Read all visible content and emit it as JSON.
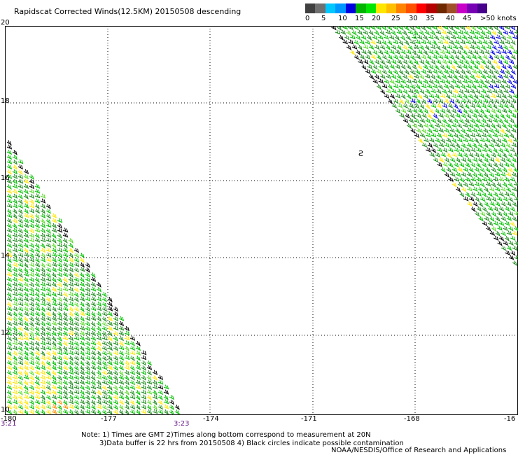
{
  "title": "Rapidscat Corrected Winds(12.5KM) 20150508 descending",
  "legend": {
    "colors": [
      "#404040",
      "#707070",
      "#00c8ff",
      "#0096ff",
      "#0000e0",
      "#00b400",
      "#00e600",
      "#ffe600",
      "#ffbe00",
      "#ff8200",
      "#ff5000",
      "#ff0000",
      "#b40000",
      "#6e2800",
      "#a05028",
      "#c800c8",
      "#7800b4",
      "#46008c"
    ],
    "labels": [
      "0",
      "5",
      "10",
      "15",
      "20",
      "25",
      "30",
      "35",
      "40",
      "45",
      ">50 knots"
    ]
  },
  "map": {
    "lat_labels": [
      "20",
      "18",
      "16",
      "14",
      "12",
      "10"
    ],
    "lon_labels": [
      "-180",
      "-177",
      "-174",
      "-171",
      "-168",
      "-16"
    ],
    "time_labels": [
      "3:21",
      "3:23"
    ],
    "annotation": "Ƨ"
  },
  "notes": {
    "line1": "Note: 1) Times are GMT 2)Times along bottom correspond to measurement at 20N",
    "line2": "3)Data buffer is 22 hrs from 20150508 4) Black circles indicate possible contamination"
  },
  "credit": "NOAA/NESDIS/Office of Research and Applications",
  "colors": {
    "green_dark": "#1e8c1e",
    "green": "#00c000",
    "green_light": "#5adc2a",
    "yellow": "#ffe600",
    "orange": "#ff8c00",
    "blue": "#0000e0",
    "black": "#000000"
  }
}
